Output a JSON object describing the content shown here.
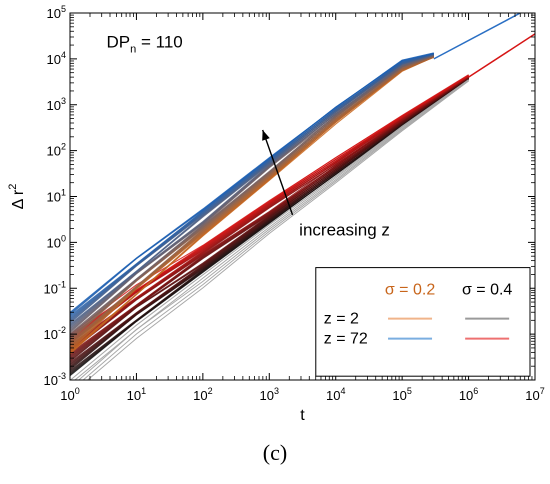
{
  "chart_data": {
    "type": "line",
    "xscale": "log",
    "yscale": "log",
    "xlim": [
      1,
      10000000
    ],
    "ylim": [
      0.001,
      100000
    ],
    "x_ticks": [
      {
        "base": "10",
        "exp": "0"
      },
      {
        "base": "10",
        "exp": "1"
      },
      {
        "base": "10",
        "exp": "2"
      },
      {
        "base": "10",
        "exp": "3"
      },
      {
        "base": "10",
        "exp": "4"
      },
      {
        "base": "10",
        "exp": "5"
      },
      {
        "base": "10",
        "exp": "6"
      },
      {
        "base": "10",
        "exp": "7"
      }
    ],
    "y_ticks": [
      {
        "base": "10",
        "exp": "-3"
      },
      {
        "base": "10",
        "exp": "-2"
      },
      {
        "base": "10",
        "exp": "-1"
      },
      {
        "base": "10",
        "exp": "0"
      },
      {
        "base": "10",
        "exp": "1"
      },
      {
        "base": "10",
        "exp": "2"
      },
      {
        "base": "10",
        "exp": "3"
      },
      {
        "base": "10",
        "exp": "4"
      },
      {
        "base": "10",
        "exp": "5"
      }
    ],
    "xlabel": "t",
    "ylabel": {
      "main": "Δ r",
      "sup": "2"
    },
    "annotation_dp": {
      "main": "DP",
      "sub": "n",
      "rest": " = 110"
    },
    "annotation_arrow": "increasing z",
    "legend": {
      "col1_header": "σ = 0.2",
      "col2_header": "σ = 0.4",
      "row1_label": "z = 2",
      "row2_label": "z = 72",
      "col1_color": "#c8651b",
      "col2_color": "#000000",
      "swatches": [
        [
          "#f0b48a",
          "#9a9a9a"
        ],
        [
          "#7aaee0",
          "#ee7070"
        ]
      ]
    },
    "series": [
      {
        "group": "sigma=0.2",
        "z_range": "2 to 72",
        "color_low_z": "#c8651b",
        "color_high_z": "#1a5fb4",
        "points": [
          [
            1,
            0.012
          ],
          [
            10,
            0.18
          ],
          [
            100,
            2.6
          ],
          [
            1000,
            40
          ],
          [
            10000,
            600
          ],
          [
            100000,
            7000
          ],
          [
            300000,
            12000
          ]
        ]
      },
      {
        "group": "sigma=0.4",
        "z_range": "2 to 72",
        "color_low_z": "#111111",
        "color_high_z": "#d61515",
        "points": [
          [
            1,
            0.004
          ],
          [
            10,
            0.045
          ],
          [
            100,
            0.45
          ],
          [
            1000,
            4.5
          ],
          [
            10000,
            45
          ],
          [
            100000,
            450
          ],
          [
            1000000,
            4000
          ]
        ]
      },
      {
        "group": "sigma=0.2",
        "z": "72",
        "color": "#2a6fc4",
        "points": [
          [
            300000,
            10000
          ],
          [
            6000000,
            100000
          ]
        ]
      },
      {
        "group": "sigma=0.4",
        "z": "72",
        "color": "#d61515",
        "points": [
          [
            1000000,
            4000
          ],
          [
            10000000,
            35000
          ]
        ]
      }
    ]
  },
  "panel_label": "(c)"
}
